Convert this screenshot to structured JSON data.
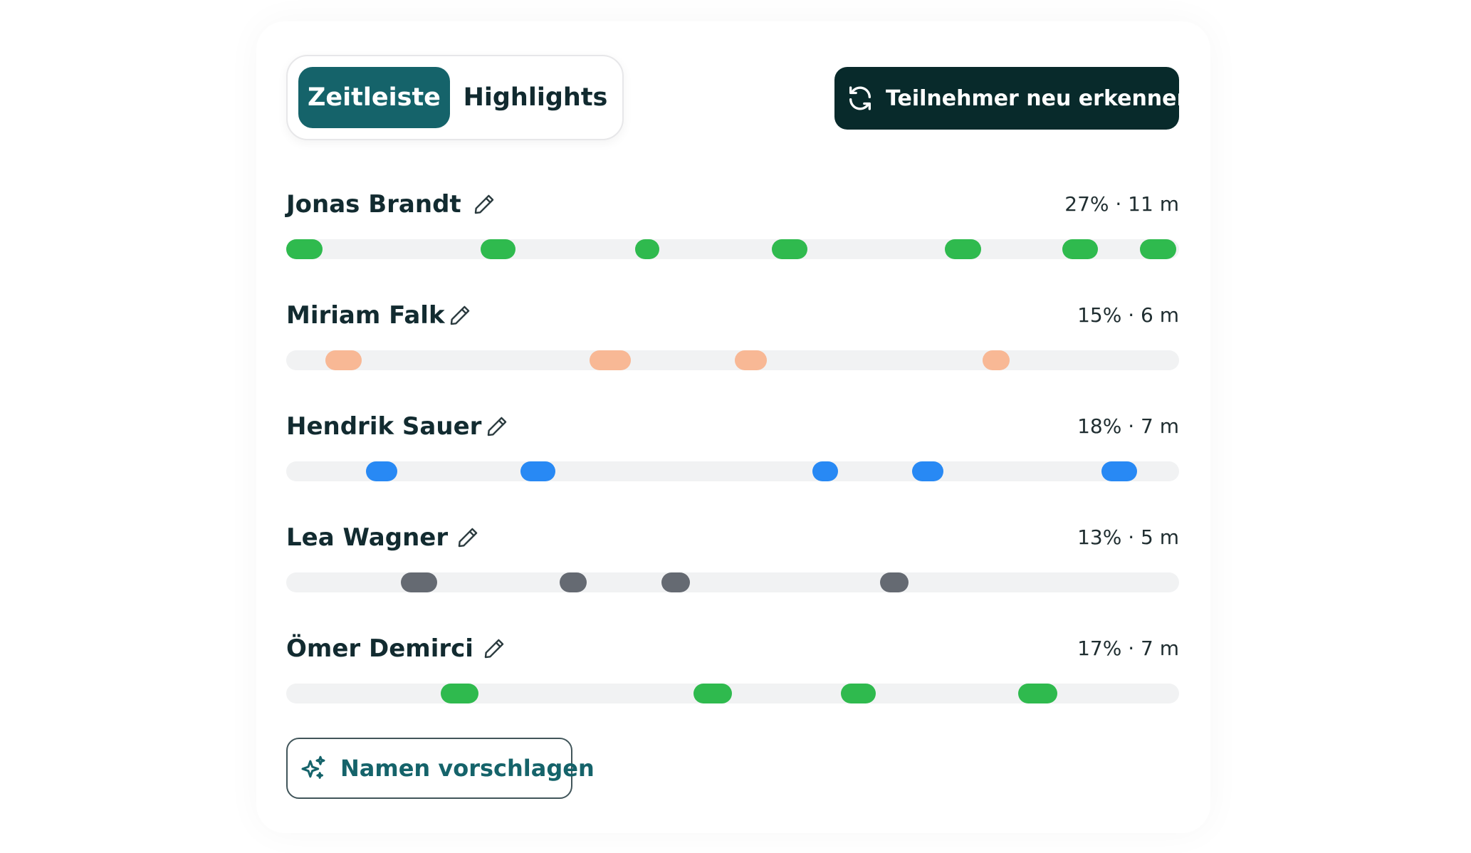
{
  "tabs": {
    "timeline_label": "Zeitleiste",
    "highlights_label": "Highlights",
    "active": "Zeitleiste"
  },
  "actions": {
    "redetect_label": "Teilnehmer neu erkennen",
    "redetect_icon": "refresh-icon",
    "suggest_label": "Namen vorschlagen",
    "suggest_icon": "sparkle-icon"
  },
  "colors": {
    "accent": "#15636a",
    "dark_button": "#082a2b",
    "track": "#f1f2f3"
  },
  "participants": [
    {
      "name": "Jonas Brandt",
      "stats": "27% · 11 m",
      "share_percent": 27,
      "color": "#2fba4e",
      "speaking_segments": [
        [
          0.0,
          0.041
        ],
        [
          0.218,
          0.257
        ],
        [
          0.391,
          0.418
        ],
        [
          0.544,
          0.584
        ],
        [
          0.738,
          0.779
        ],
        [
          0.869,
          0.909
        ],
        [
          0.956,
          0.997
        ]
      ]
    },
    {
      "name": "Miriam Falk",
      "stats": "15% · 6 m",
      "share_percent": 15,
      "color": "#f8b895",
      "speaking_segments": [
        [
          0.044,
          0.085
        ],
        [
          0.34,
          0.386
        ],
        [
          0.502,
          0.538
        ],
        [
          0.78,
          0.81
        ]
      ]
    },
    {
      "name": "Hendrik Sauer",
      "stats": "18% · 7 m",
      "share_percent": 18,
      "color": "#2889f4",
      "speaking_segments": [
        [
          0.089,
          0.124
        ],
        [
          0.262,
          0.301
        ],
        [
          0.589,
          0.618
        ],
        [
          0.701,
          0.736
        ],
        [
          0.913,
          0.953
        ]
      ]
    },
    {
      "name": "Lea Wagner",
      "stats": "13% · 5 m",
      "share_percent": 13,
      "color": "#656a72",
      "speaking_segments": [
        [
          0.128,
          0.169
        ],
        [
          0.306,
          0.336
        ],
        [
          0.42,
          0.452
        ],
        [
          0.665,
          0.697
        ]
      ]
    },
    {
      "name": "Ömer Demirci",
      "stats": "17% · 7 m",
      "share_percent": 17,
      "color": "#2fba4e",
      "speaking_segments": [
        [
          0.173,
          0.215
        ],
        [
          0.456,
          0.499
        ],
        [
          0.621,
          0.66
        ],
        [
          0.82,
          0.864
        ]
      ]
    }
  ]
}
